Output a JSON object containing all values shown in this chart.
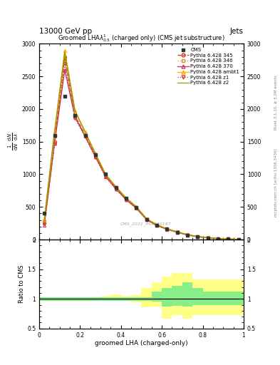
{
  "title_top": "13000 GeV pp",
  "title_right": "Jets",
  "plot_title": "Groomed LHA$\\lambda^{1}_{0.5}$ (charged only) (CMS jet substructure)",
  "xlabel": "groomed LHA (charged-only)",
  "ylabel_ratio": "Ratio to CMS",
  "right_label_top": "Rivet 3.1.10, ≥ 3.2M events",
  "right_label_bottom": "mcplots.cern.ch [arXiv:1306.3436]",
  "watermark": "CMS_2021_PAS920187",
  "x_bins": [
    0.0,
    0.05,
    0.1,
    0.15,
    0.2,
    0.25,
    0.3,
    0.35,
    0.4,
    0.45,
    0.5,
    0.55,
    0.6,
    0.65,
    0.7,
    0.75,
    0.8,
    0.85,
    0.9,
    0.95,
    1.0
  ],
  "cms_data": [
    400,
    1600,
    2200,
    1900,
    1600,
    1300,
    1000,
    800,
    630,
    490,
    310,
    220,
    160,
    110,
    70,
    40,
    25,
    12,
    6,
    2
  ],
  "py345_data": [
    250,
    1500,
    2800,
    1900,
    1600,
    1290,
    980,
    790,
    620,
    490,
    310,
    220,
    160,
    115,
    72,
    44,
    27,
    13,
    7,
    3
  ],
  "py346_data": [
    280,
    1580,
    2750,
    1900,
    1600,
    1290,
    980,
    795,
    625,
    492,
    312,
    222,
    162,
    117,
    73,
    45,
    28,
    14,
    7,
    3
  ],
  "py370_data": [
    220,
    1480,
    2600,
    1880,
    1580,
    1270,
    965,
    778,
    612,
    482,
    307,
    217,
    157,
    112,
    70,
    43,
    26,
    12,
    6,
    2
  ],
  "py_ambt1_data": [
    290,
    1620,
    2900,
    1980,
    1650,
    1320,
    1000,
    810,
    638,
    505,
    320,
    228,
    165,
    120,
    76,
    47,
    29,
    14,
    7,
    3
  ],
  "py_z1_data": [
    240,
    1460,
    2700,
    1860,
    1570,
    1260,
    958,
    770,
    606,
    478,
    304,
    214,
    155,
    110,
    68,
    42,
    25,
    12,
    6,
    2
  ],
  "py_z2_data": [
    310,
    1660,
    2870,
    1970,
    1645,
    1315,
    997,
    807,
    635,
    503,
    318,
    226,
    163,
    118,
    75,
    46,
    28,
    14,
    7,
    3
  ],
  "ratio_x_edges": [
    0.0,
    0.05,
    0.1,
    0.15,
    0.2,
    0.25,
    0.3,
    0.35,
    0.4,
    0.45,
    0.5,
    0.55,
    0.6,
    0.65,
    0.7,
    0.75,
    0.8,
    0.85,
    0.9,
    0.95,
    1.0
  ],
  "ratio_green_lo": [
    0.97,
    0.97,
    0.97,
    0.97,
    0.97,
    0.97,
    0.97,
    0.97,
    0.97,
    0.97,
    0.97,
    0.95,
    0.87,
    0.88,
    0.87,
    0.9,
    0.9,
    0.9,
    0.9,
    0.9
  ],
  "ratio_green_hi": [
    1.03,
    1.03,
    1.03,
    1.03,
    1.03,
    1.03,
    1.03,
    1.03,
    1.03,
    1.03,
    1.03,
    1.12,
    1.18,
    1.22,
    1.28,
    1.18,
    1.12,
    1.12,
    1.12,
    1.12
  ],
  "ratio_yellow_lo": [
    0.97,
    0.97,
    0.97,
    0.97,
    0.97,
    0.97,
    0.97,
    0.97,
    0.97,
    0.94,
    0.86,
    0.87,
    0.67,
    0.73,
    0.66,
    0.73,
    0.73,
    0.73,
    0.73,
    0.73
  ],
  "ratio_yellow_hi": [
    1.03,
    1.03,
    1.03,
    1.03,
    1.03,
    1.03,
    1.05,
    1.08,
    1.05,
    1.06,
    1.18,
    1.28,
    1.38,
    1.43,
    1.43,
    1.33,
    1.33,
    1.33,
    1.33,
    1.33
  ],
  "color_cms": "#333333",
  "color_345": "#cc3333",
  "color_346": "#cc9933",
  "color_370": "#cc3366",
  "color_ambt1": "#ffaa00",
  "color_z1": "#cc4422",
  "color_z2": "#999900",
  "ylim_main": [
    0,
    3000
  ],
  "ylim_ratio": [
    0.5,
    2.0
  ],
  "xlim": [
    0.0,
    1.0
  ],
  "yticks_main": [
    0,
    500,
    1000,
    1500,
    2000,
    2500,
    3000
  ]
}
